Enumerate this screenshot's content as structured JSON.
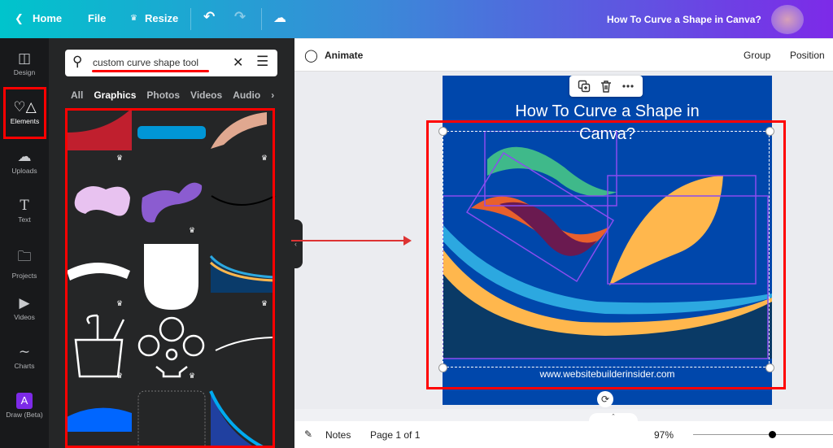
{
  "topbar": {
    "home": "Home",
    "file": "File",
    "resize": "Resize",
    "doc_title": "How To Curve a Shape in Canva?"
  },
  "rail": [
    {
      "label": "Design",
      "icon": "layout-icon"
    },
    {
      "label": "Elements",
      "icon": "shapes-icon",
      "active": true
    },
    {
      "label": "Uploads",
      "icon": "cloud-upload-icon"
    },
    {
      "label": "Text",
      "icon": "text-icon"
    },
    {
      "label": "Projects",
      "icon": "folder-icon"
    },
    {
      "label": "Videos",
      "icon": "video-icon"
    },
    {
      "label": "Charts",
      "icon": "chart-icon"
    },
    {
      "label": "Draw (Beta)",
      "icon": "draw-icon"
    }
  ],
  "search": {
    "value": "custom curve shape tool"
  },
  "categories": [
    "All",
    "Graphics",
    "Photos",
    "Videos",
    "Audio"
  ],
  "toolbar": {
    "animate": "Animate",
    "group": "Group",
    "position": "Position"
  },
  "canvas": {
    "title": "How To Curve a Shape in Canva?",
    "footer": "www.websitebuilderinsider.com"
  },
  "bottom": {
    "notes": "Notes",
    "page": "Page 1 of 1",
    "zoom": "97%",
    "zoom_percent": 97
  },
  "colors": {
    "accent": "#7d2ae8",
    "highlight": "#ff0000",
    "canvas_bg": "#0047ab"
  }
}
